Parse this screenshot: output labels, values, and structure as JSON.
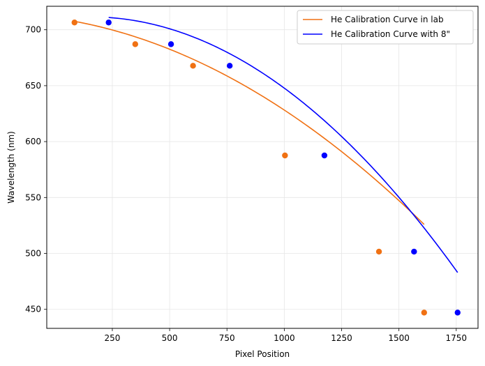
{
  "chart_data": {
    "type": "line",
    "title": "",
    "xlabel": "Pixel Position",
    "ylabel": "Wavelength (nm)",
    "xlim": [
      -36,
      1845
    ],
    "ylim": [
      433,
      721
    ],
    "xticks": [
      250,
      500,
      750,
      1000,
      1250,
      1500,
      1750
    ],
    "yticks": [
      450,
      500,
      550,
      600,
      650,
      700
    ],
    "grid": true,
    "legend_position": "top-right",
    "series": [
      {
        "name": "He Calibration Curve in lab",
        "color": "#f07113",
        "points": [
          {
            "x": 85,
            "y": 706.5
          },
          {
            "x": 350,
            "y": 687.1
          },
          {
            "x": 602,
            "y": 667.8
          },
          {
            "x": 1003,
            "y": 587.6
          },
          {
            "x": 1413,
            "y": 501.6
          },
          {
            "x": 1610,
            "y": 447.1
          }
        ],
        "fit_coeffs": [
          710.4,
          -0.0291,
          -5.31e-05
        ],
        "fit_range": [
          85,
          1610
        ]
      },
      {
        "name": "He Calibration Curve with 8\"",
        "color": "#0000ff",
        "points": [
          {
            "x": 234,
            "y": 706.5
          },
          {
            "x": 506,
            "y": 687.1
          },
          {
            "x": 762,
            "y": 667.8
          },
          {
            "x": 1175,
            "y": 587.6
          },
          {
            "x": 1566,
            "y": 501.6
          },
          {
            "x": 1756,
            "y": 447.1
          }
        ],
        "fit_coeffs": [
          709.4,
          0.0275,
          -8.91e-05
        ],
        "fit_range": [
          234,
          1756
        ]
      }
    ]
  }
}
